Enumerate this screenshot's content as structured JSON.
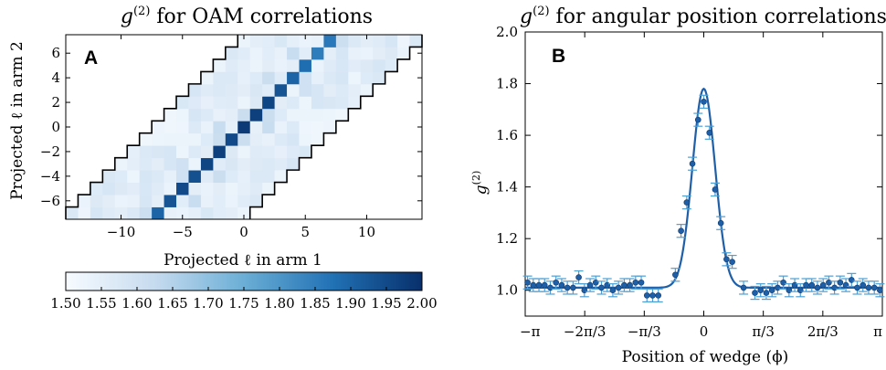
{
  "chart_data": [
    {
      "type": "heatmap",
      "panel_label": "A",
      "title_main": "g",
      "title_sup": "(2)",
      "title_rest": " for OAM correlations",
      "xlabel": "Projected ℓ in arm 1",
      "ylabel": "Projected ℓ in arm 2",
      "xlim": [
        -14.5,
        14.5
      ],
      "ylim": [
        -7.5,
        7.5
      ],
      "x_ticks": [
        -10,
        -5,
        0,
        5,
        10
      ],
      "x_tick_labels": [
        "−10",
        "−5",
        "0",
        "5",
        "10"
      ],
      "y_ticks": [
        -6,
        -4,
        -2,
        0,
        2,
        4,
        6
      ],
      "y_tick_labels": [
        "−6",
        "−4",
        "−2",
        "0",
        "2",
        "4",
        "6"
      ],
      "band_halfwidth": 7,
      "vmin": 1.5,
      "vmax": 2.0,
      "colorbar_ticks": [
        1.5,
        1.55,
        1.6,
        1.65,
        1.7,
        1.75,
        1.8,
        1.85,
        1.9,
        1.95,
        2.0
      ],
      "colorbar_tick_labels": [
        "1.50",
        "1.55",
        "1.60",
        "1.65",
        "1.70",
        "1.75",
        "1.80",
        "1.85",
        "1.90",
        "1.95",
        "2.00"
      ],
      "diagonal": [
        {
          "l": -7,
          "value": 1.9
        },
        {
          "l": -6,
          "value": 1.93
        },
        {
          "l": -5,
          "value": 1.95
        },
        {
          "l": -4,
          "value": 1.94
        },
        {
          "l": -3,
          "value": 1.96
        },
        {
          "l": -2,
          "value": 1.97
        },
        {
          "l": -1,
          "value": 1.95
        },
        {
          "l": 0,
          "value": 1.98
        },
        {
          "l": 1,
          "value": 1.97
        },
        {
          "l": 2,
          "value": 1.96
        },
        {
          "l": 3,
          "value": 1.93
        },
        {
          "l": 4,
          "value": 1.9
        },
        {
          "l": 5,
          "value": 1.88
        },
        {
          "l": 6,
          "value": 1.85
        },
        {
          "l": 7,
          "value": 1.86
        }
      ],
      "off_diagonal_range": [
        1.5,
        1.65
      ]
    },
    {
      "type": "scatter",
      "panel_label": "B",
      "title_main": "g",
      "title_sup": "(2)",
      "title_rest": " for angular position correlations",
      "xlabel": "Position of wedge (ϕ)",
      "ylabel_main": "g",
      "ylabel_sup": "(2)",
      "xlim": [
        -3.1416,
        3.1416
      ],
      "ylim": [
        0.9,
        2.0
      ],
      "x_ticks": [
        -3.1416,
        -2.0944,
        -1.0472,
        0,
        1.0472,
        2.0944,
        3.1416
      ],
      "x_tick_labels": [
        "−π",
        "−2π/3",
        "−π/3",
        "0",
        "π/3",
        "2π/3",
        "π"
      ],
      "y_ticks": [
        1.0,
        1.2,
        1.4,
        1.6,
        1.8,
        2.0
      ],
      "y_tick_labels": [
        "1.0",
        "1.2",
        "1.4",
        "1.6",
        "1.8",
        "2.0"
      ],
      "color": "#1f5fa8",
      "errorbar_color": "#4d9fd4",
      "points": [
        {
          "x": -3.1,
          "y": 1.03
        },
        {
          "x": -3.0,
          "y": 1.02
        },
        {
          "x": -2.9,
          "y": 1.02
        },
        {
          "x": -2.8,
          "y": 1.02
        },
        {
          "x": -2.7,
          "y": 1.01
        },
        {
          "x": -2.6,
          "y": 1.03
        },
        {
          "x": -2.5,
          "y": 1.02
        },
        {
          "x": -2.4,
          "y": 1.01
        },
        {
          "x": -2.3,
          "y": 1.01
        },
        {
          "x": -2.2,
          "y": 1.05
        },
        {
          "x": -2.1,
          "y": 1.0
        },
        {
          "x": -2.0,
          "y": 1.02
        },
        {
          "x": -1.9,
          "y": 1.03
        },
        {
          "x": -1.8,
          "y": 1.01
        },
        {
          "x": -1.7,
          "y": 1.02
        },
        {
          "x": -1.6,
          "y": 1.0
        },
        {
          "x": -1.5,
          "y": 1.01
        },
        {
          "x": -1.4,
          "y": 1.02
        },
        {
          "x": -1.3,
          "y": 1.02
        },
        {
          "x": -1.2,
          "y": 1.03
        },
        {
          "x": -1.1,
          "y": 1.03
        },
        {
          "x": -1.0,
          "y": 0.98
        },
        {
          "x": -0.9,
          "y": 0.98
        },
        {
          "x": -0.8,
          "y": 0.98
        },
        {
          "x": -0.5,
          "y": 1.06
        },
        {
          "x": -0.4,
          "y": 1.23
        },
        {
          "x": -0.3,
          "y": 1.34
        },
        {
          "x": -0.2,
          "y": 1.49
        },
        {
          "x": -0.1,
          "y": 1.66
        },
        {
          "x": 0.0,
          "y": 1.73
        },
        {
          "x": 0.1,
          "y": 1.61
        },
        {
          "x": 0.2,
          "y": 1.39
        },
        {
          "x": 0.3,
          "y": 1.26
        },
        {
          "x": 0.4,
          "y": 1.12
        },
        {
          "x": 0.5,
          "y": 1.11
        },
        {
          "x": 0.7,
          "y": 1.01
        },
        {
          "x": 0.9,
          "y": 0.99
        },
        {
          "x": 1.0,
          "y": 1.0
        },
        {
          "x": 1.1,
          "y": 0.99
        },
        {
          "x": 1.2,
          "y": 1.0
        },
        {
          "x": 1.3,
          "y": 1.01
        },
        {
          "x": 1.4,
          "y": 1.03
        },
        {
          "x": 1.5,
          "y": 1.0
        },
        {
          "x": 1.6,
          "y": 1.02
        },
        {
          "x": 1.7,
          "y": 1.0
        },
        {
          "x": 1.8,
          "y": 1.02
        },
        {
          "x": 1.9,
          "y": 1.02
        },
        {
          "x": 2.0,
          "y": 1.01
        },
        {
          "x": 2.1,
          "y": 1.02
        },
        {
          "x": 2.2,
          "y": 1.03
        },
        {
          "x": 2.3,
          "y": 1.01
        },
        {
          "x": 2.4,
          "y": 1.03
        },
        {
          "x": 2.5,
          "y": 1.02
        },
        {
          "x": 2.6,
          "y": 1.04
        },
        {
          "x": 2.7,
          "y": 1.01
        },
        {
          "x": 2.8,
          "y": 1.02
        },
        {
          "x": 2.9,
          "y": 1.01
        },
        {
          "x": 3.0,
          "y": 1.01
        },
        {
          "x": 3.1,
          "y": 1.0
        }
      ],
      "error": 0.025,
      "fit": {
        "type": "gaussian",
        "baseline": 1.01,
        "amplitude": 0.77,
        "center": 0.0,
        "sigma": 0.2
      }
    }
  ]
}
